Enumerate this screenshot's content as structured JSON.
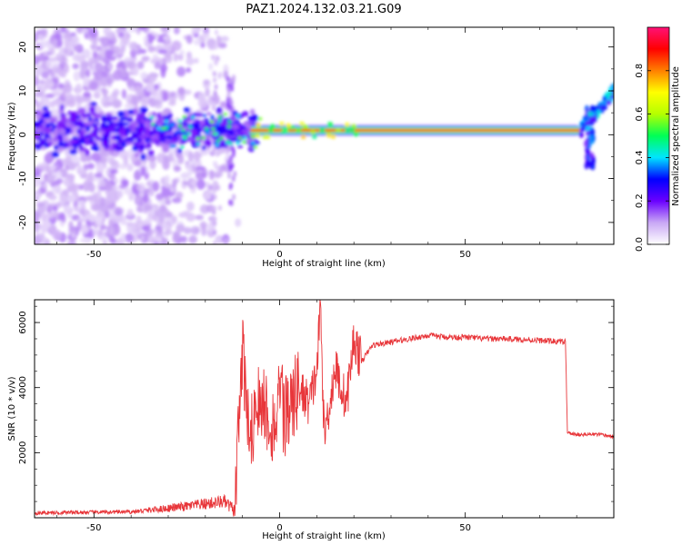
{
  "title": "PAZ1.2024.132.03.21.G09",
  "chart_data": [
    {
      "type": "heatmap",
      "xlabel": "Height of straight line (km)",
      "ylabel": "Frequency (Hz)",
      "xlim": [
        -66,
        90
      ],
      "ylim": [
        -25,
        24.5
      ],
      "xticks": [
        -50,
        0,
        50
      ],
      "yticks": [
        -20,
        -10,
        0,
        10,
        20
      ],
      "main_ridge": {
        "x_start": -8,
        "x_end": 81,
        "frequency": 1
      },
      "colorbar": {
        "label": "Normalized spectral amplitude",
        "range": [
          0,
          1
        ],
        "ticks": [
          0.0,
          0.2,
          0.4,
          0.6,
          0.8
        ],
        "colors": [
          "#ffffff",
          "#c9a8f5",
          "#6a00ff",
          "#0000ff",
          "#00e5ff",
          "#00ff55",
          "#b5ff00",
          "#ffff00",
          "#ff8000",
          "#ff0000",
          "#ff1177"
        ]
      }
    },
    {
      "type": "line",
      "xlabel": "Height of straight line (km)",
      "ylabel": "SNR (10 * v/v)",
      "xlim": [
        -66,
        90
      ],
      "ylim": [
        0,
        6700
      ],
      "xticks": [
        -50,
        0,
        50
      ],
      "yticks": [
        2000,
        4000,
        6000
      ],
      "color": "#e8363a",
      "x": [
        -66,
        -40,
        -25,
        -15,
        -12,
        -10,
        -8,
        -5,
        -2,
        0,
        3,
        5,
        8,
        10,
        11,
        12,
        15,
        18,
        20,
        22,
        25,
        30,
        35,
        40,
        45,
        50,
        55,
        60,
        65,
        70,
        77,
        77.5,
        80,
        85,
        90
      ],
      "values": [
        150,
        180,
        350,
        500,
        200,
        5000,
        2800,
        3800,
        2800,
        3500,
        3300,
        4000,
        3500,
        4500,
        6500,
        2500,
        4600,
        3500,
        5500,
        4800,
        5300,
        5400,
        5500,
        5600,
        5550,
        5550,
        5500,
        5500,
        5480,
        5450,
        5400,
        2600,
        2560,
        2560,
        2500
      ]
    }
  ]
}
